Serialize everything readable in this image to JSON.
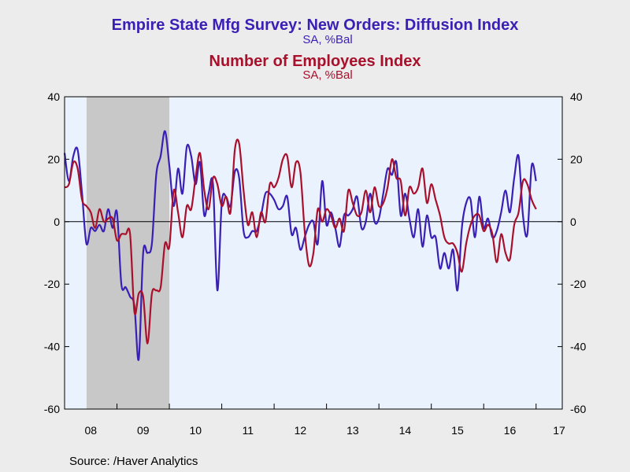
{
  "chart_data": {
    "type": "line",
    "title": "Empire State Mfg Survey: New Orders: Diffusion Index",
    "subtitle": "SA, %Bal",
    "title2": "Number of Employees Index",
    "subtitle2": "SA, %Bal",
    "xlabel": "",
    "ylabel": "",
    "ylim": [
      -60,
      40
    ],
    "yticks": [
      -60,
      -40,
      -20,
      0,
      20,
      40
    ],
    "xlim": [
      2007.5,
      2017.0
    ],
    "x_tick_labels": [
      "08",
      "09",
      "10",
      "11",
      "12",
      "13",
      "14",
      "15",
      "16",
      "17"
    ],
    "x_tick_positions": [
      2008,
      2009,
      2010,
      2011,
      2012,
      2013,
      2014,
      2015,
      2016,
      2017
    ],
    "recession": {
      "start": 2007.92,
      "end": 2009.5
    },
    "zero_line": true,
    "grid": false,
    "series": [
      {
        "name": "Empire State Mfg Survey: New Orders: Diffusion Index",
        "color": "#3a1fb5",
        "start": 2007.5,
        "step": 0.08333,
        "values": [
          22,
          13,
          21,
          23,
          9,
          -7,
          -2,
          -3,
          -1,
          -3,
          4,
          -2,
          3,
          -20,
          -21,
          -24,
          -27,
          -44,
          -10,
          -10,
          -7,
          15,
          21,
          29,
          18,
          5,
          17,
          9,
          24,
          21,
          12,
          19,
          2,
          9,
          12,
          -22,
          6,
          8,
          5,
          16,
          14,
          -3,
          -5,
          -3,
          -3,
          2,
          9,
          9,
          7,
          4,
          5,
          8,
          -4,
          -2,
          -9,
          -5,
          -1,
          0,
          -7,
          13,
          -1,
          3,
          -2,
          -8,
          2,
          2,
          4,
          8,
          -2,
          0,
          9,
          0,
          1,
          9,
          17,
          15,
          19,
          2,
          9,
          1,
          -5,
          4,
          -8,
          2,
          -5,
          -5,
          -15,
          -10,
          -15,
          -9,
          -22,
          -2,
          6,
          7,
          -5,
          8,
          -2,
          1,
          -5,
          -3,
          3,
          10,
          3,
          14,
          21,
          2,
          -4,
          18,
          13
        ],
        "smooth": true
      },
      {
        "name": "Number of Employees Index",
        "color": "#a8102c",
        "start": 2007.5,
        "step": 0.08333,
        "values": [
          11,
          12,
          19,
          17,
          7,
          5,
          3,
          -2,
          4,
          0,
          1,
          1,
          -6,
          -4,
          -4,
          -4,
          -29,
          -23,
          -24,
          -39,
          -23,
          -22,
          -21,
          -7,
          -8,
          10,
          3,
          -5,
          5,
          4,
          14,
          22,
          10,
          4,
          14,
          12,
          5,
          8,
          3,
          23,
          25,
          10,
          -1,
          3,
          -5,
          3,
          0,
          12,
          11,
          14,
          20,
          21,
          11,
          19,
          16,
          -3,
          -14,
          -10,
          4,
          0,
          4,
          2,
          -2,
          1,
          -3,
          10,
          6,
          2,
          3,
          10,
          3,
          11,
          5,
          6,
          11,
          20,
          14,
          13,
          2,
          11,
          9,
          11,
          17,
          6,
          12,
          7,
          2,
          -5,
          -7,
          -7,
          -10,
          -16,
          -7,
          -1,
          2,
          2,
          -3,
          -1,
          -4,
          -13,
          -4,
          -10,
          -12,
          -1,
          3,
          13,
          12,
          7,
          4
        ],
        "smooth": true
      }
    ]
  },
  "source": "Source:  /Haver Analytics",
  "colors": {
    "background": "#ececec",
    "plot_bg": "#eaf3fd",
    "recession": "#c8c8c8",
    "series1": "#3a1fb5",
    "series2": "#a8102c"
  }
}
